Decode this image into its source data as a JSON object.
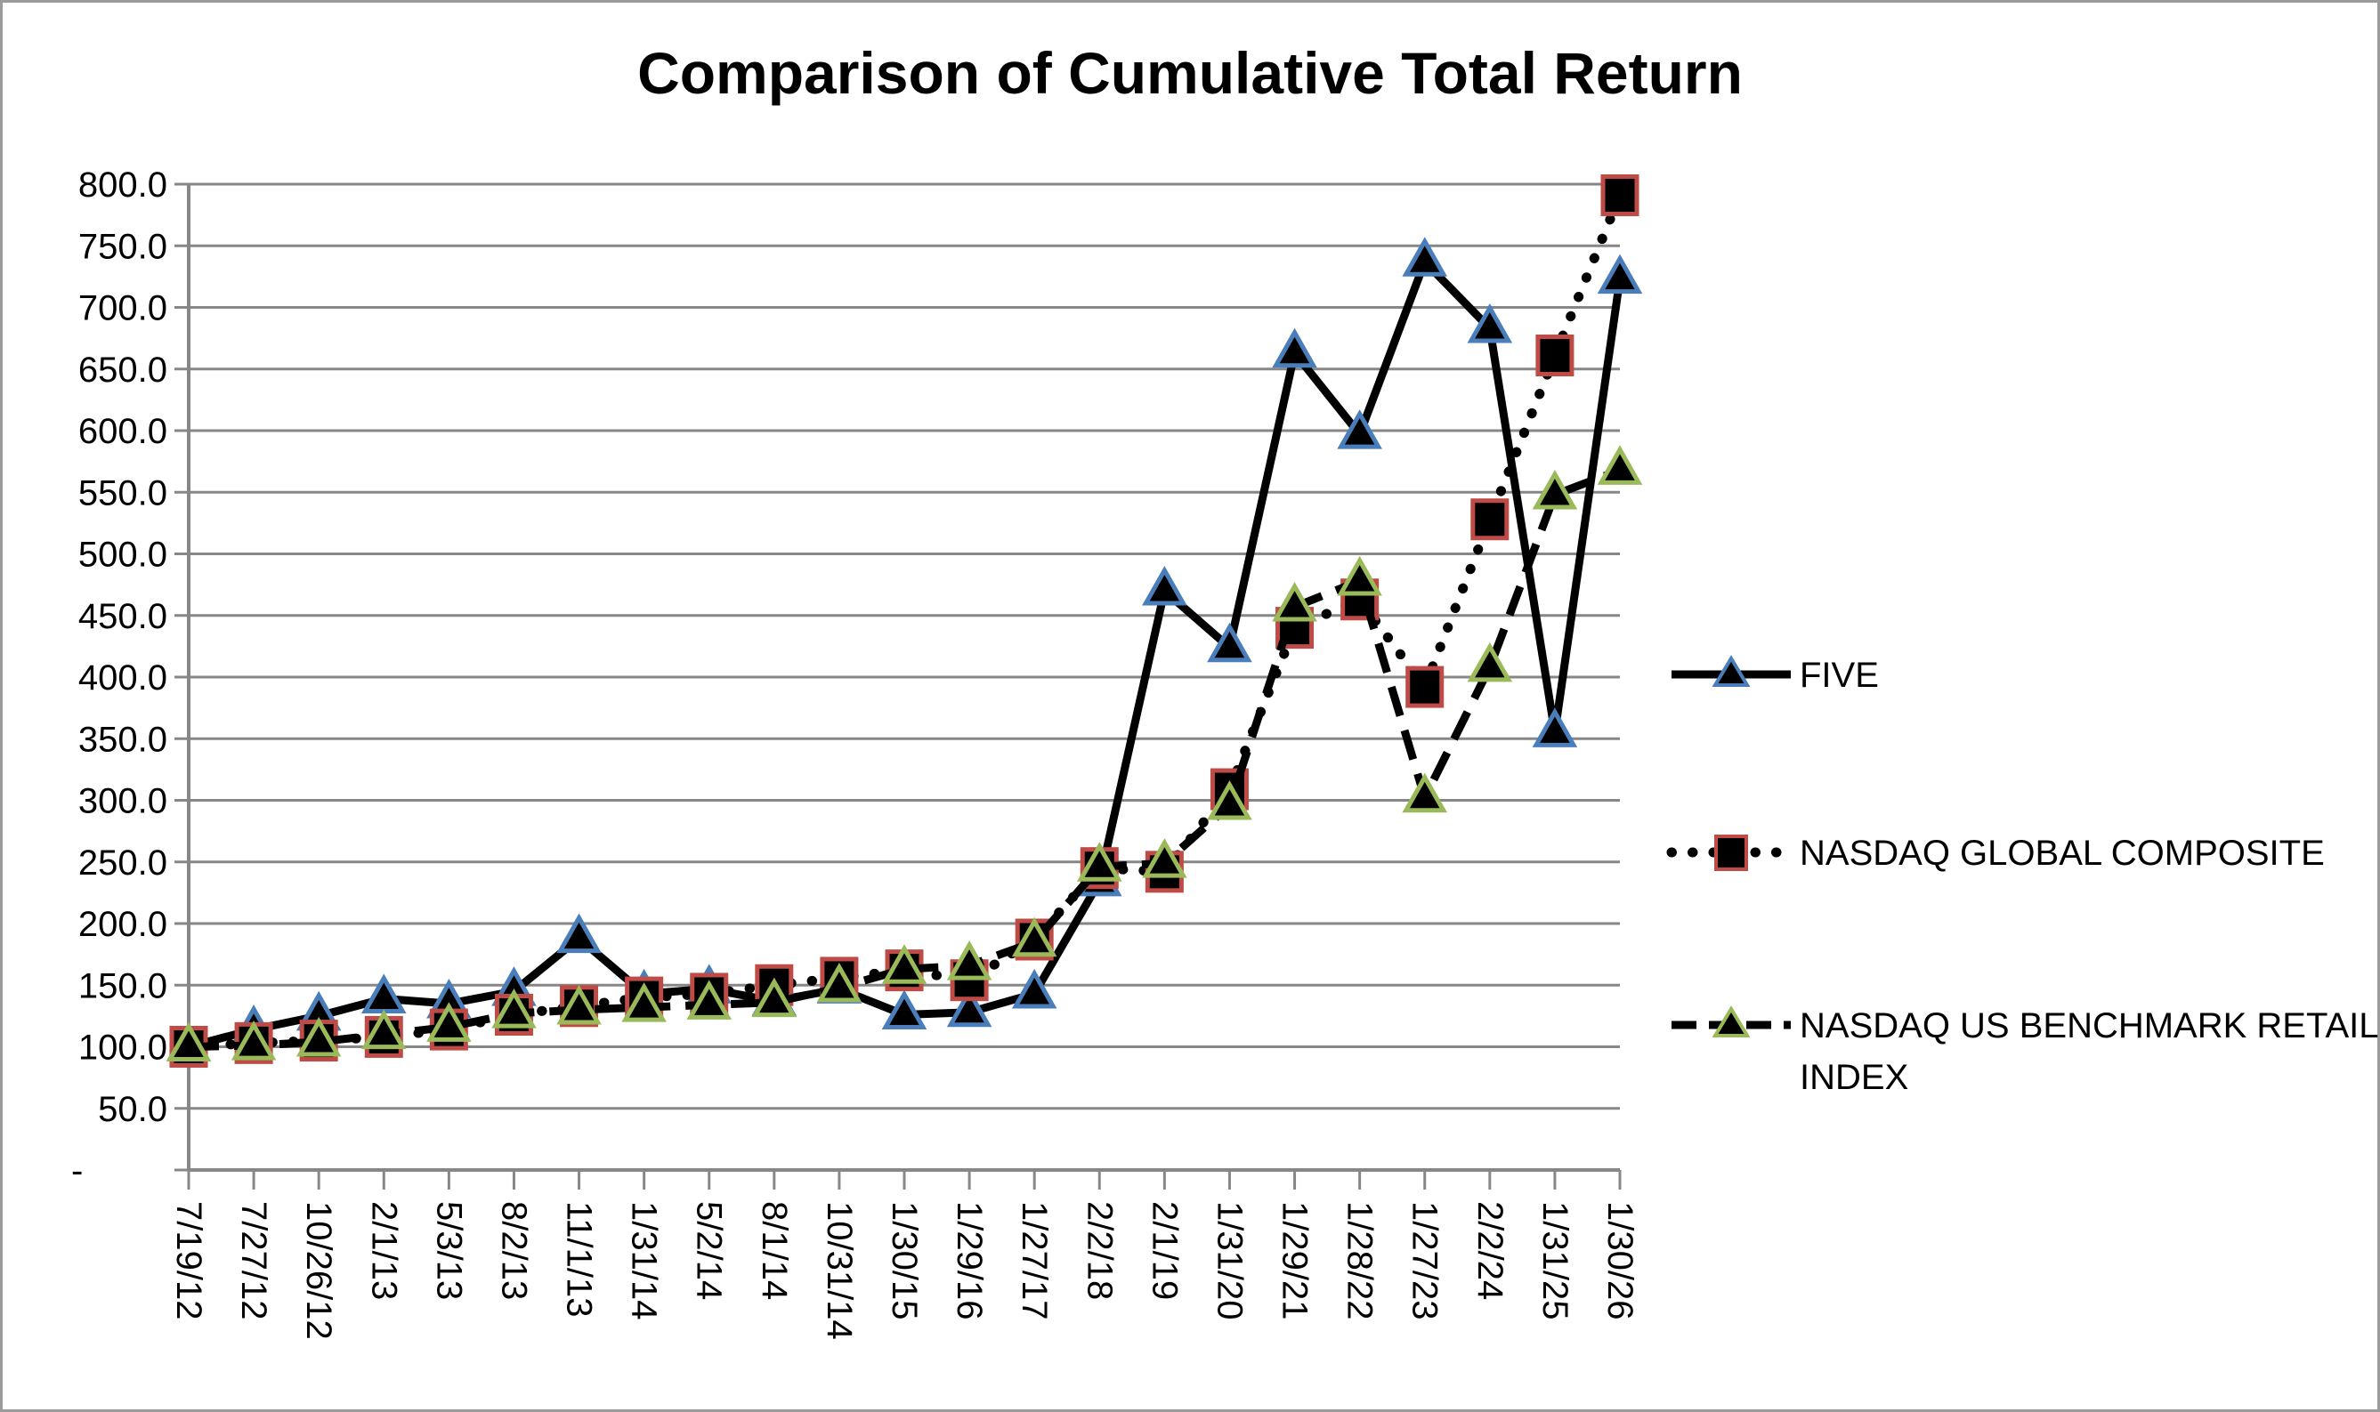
{
  "title": "Comparison of Cumulative Total Return",
  "chart_data": {
    "type": "line",
    "title": "Comparison of Cumulative Total Return",
    "x_categories": [
      "7/19/12",
      "7/27/12",
      "10/26/12",
      "2/1/13",
      "5/3/13",
      "8/2/13",
      "11/1/13",
      "1/31/14",
      "5/2/14",
      "8/1/14",
      "10/31/14",
      "1/30/15",
      "1/29/16",
      "1/27/17",
      "2/2/18",
      "2/1/19",
      "1/31/20",
      "1/29/21",
      "1/28/22",
      "1/27/23",
      "2/2/24",
      "1/31/25",
      "1/30/26"
    ],
    "series": [
      {
        "name": "FIVE",
        "line_style": "solid",
        "marker": "triangle",
        "marker_color": "#4a7ebb",
        "line_color": "#000000",
        "values": [
          100,
          114,
          125,
          139,
          135,
          145,
          188,
          143,
          147,
          137,
          147,
          126,
          128,
          143,
          234,
          470,
          424,
          663,
          597,
          737,
          683,
          355,
          723
        ]
      },
      {
        "name": "NASDAQ GLOBAL COMPOSITE",
        "line_style": "dotted",
        "marker": "square",
        "marker_color": "#bf4b47",
        "line_color": "#000000",
        "values": [
          100,
          103,
          105,
          108,
          114,
          126,
          133,
          140,
          143,
          150,
          156,
          162,
          154,
          187,
          245,
          242,
          309,
          440,
          463,
          392,
          528,
          661,
          791
        ]
      },
      {
        "name": "NASDAQ US BENCHMARK RETAIL INDEX",
        "line_style": "dashed",
        "marker": "triangle",
        "marker_color": "#9aba59",
        "line_color": "#000000",
        "values": [
          100,
          101,
          104,
          110,
          116,
          127,
          130,
          132,
          134,
          136,
          148,
          163,
          166,
          185,
          246,
          249,
          296,
          457,
          478,
          302,
          408,
          548,
          568
        ]
      }
    ],
    "ylim": [
      0,
      800
    ],
    "y_tick_step": 50,
    "y_tick_labels": [
      "-",
      "50.0",
      "100.0",
      "150.0",
      "200.0",
      "250.0",
      "300.0",
      "350.0",
      "400.0",
      "450.0",
      "500.0",
      "550.0",
      "600.0",
      "650.0",
      "700.0",
      "750.0",
      "800.0"
    ],
    "grid": true,
    "legend_position": "right",
    "axis_color": "#878787",
    "background_color": "#ffffff"
  },
  "legend": {
    "items": [
      {
        "lines": [
          "FIVE"
        ]
      },
      {
        "lines": [
          "NASDAQ GLOBAL COMPOSITE"
        ]
      },
      {
        "lines": [
          "NASDAQ US BENCHMARK RETAIL",
          "INDEX"
        ]
      }
    ]
  }
}
